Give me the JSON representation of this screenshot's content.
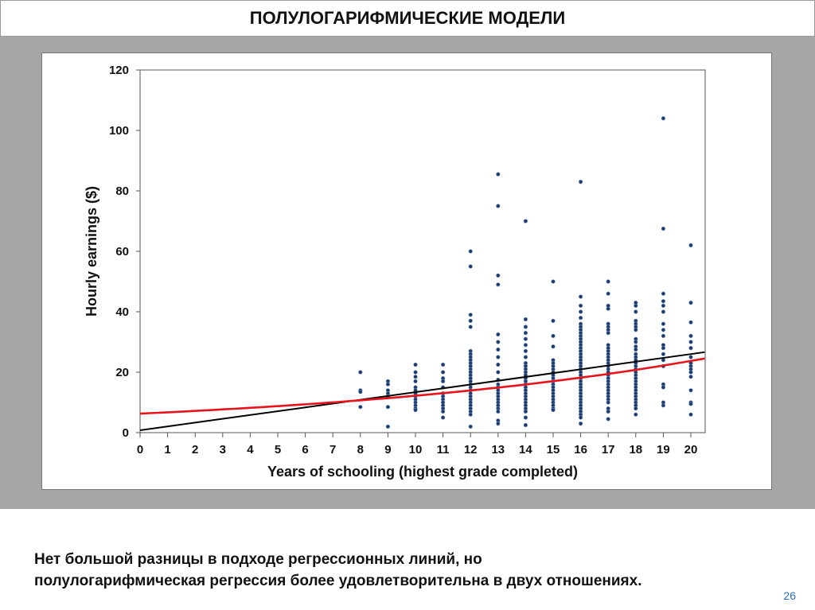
{
  "slide": {
    "title": "ПОЛУЛОГАРИФМИЧЕСКИЕ МОДЕЛИ",
    "note_line1": "Нет большой разницы в подходе регрессионных линий, но",
    "note_line2": "полулогарифмическая регрессия более удовлетворительна в двух отношениях.",
    "page_number": "26"
  },
  "chart_data": {
    "type": "scatter",
    "title": "",
    "xlabel": "Years of schooling (highest grade completed)",
    "ylabel": "Hourly earnings ($)",
    "xlim": [
      0,
      20.5
    ],
    "ylim": [
      0,
      120
    ],
    "xticks": [
      0,
      1,
      2,
      3,
      4,
      5,
      6,
      7,
      8,
      9,
      10,
      11,
      12,
      13,
      14,
      15,
      16,
      17,
      18,
      19,
      20
    ],
    "yticks": [
      0,
      20,
      40,
      60,
      80,
      100,
      120
    ],
    "grid": false,
    "point_color": "#1f3a68",
    "points_by_x": {
      "8": [
        20,
        14,
        13.5,
        8.5
      ],
      "9": [
        17,
        16,
        14,
        13,
        12,
        8.5,
        2
      ],
      "10": [
        22.5,
        20,
        18.5,
        17,
        15,
        14,
        13,
        12,
        11,
        10,
        9,
        8,
        7.5
      ],
      "11": [
        22.5,
        20,
        18,
        17,
        15,
        13,
        12,
        11,
        10,
        9,
        8,
        7,
        5
      ],
      "12": [
        60,
        55,
        39,
        37,
        35,
        27,
        26,
        25,
        24,
        23,
        22,
        21,
        20,
        19,
        18,
        17,
        16,
        15,
        14,
        13,
        12,
        11,
        10,
        9,
        8,
        7,
        6,
        2
      ],
      "13": [
        85.5,
        75,
        52,
        49,
        32.5,
        30,
        27.5,
        25,
        22.5,
        20,
        17.5,
        16,
        15,
        14,
        13,
        12,
        11,
        10,
        9,
        8,
        7,
        4,
        3
      ],
      "14": [
        70,
        37.5,
        35,
        33,
        31,
        29,
        27,
        25,
        23,
        22,
        21,
        20,
        19,
        18,
        17,
        16,
        15,
        14,
        13,
        12,
        11,
        10,
        9,
        8,
        7,
        5,
        2.5
      ],
      "15": [
        50,
        37,
        32,
        28.5,
        24,
        23,
        22,
        21,
        20,
        19,
        18,
        17,
        16,
        15,
        14,
        13,
        12,
        11,
        10,
        9,
        8,
        7.5
      ],
      "16": [
        83,
        45,
        42,
        40,
        38,
        36,
        35,
        34,
        33,
        32,
        31,
        30,
        29,
        28,
        27,
        26,
        25,
        24,
        23,
        22,
        21,
        20,
        19,
        18,
        17,
        16,
        15,
        14,
        13,
        12,
        11,
        10,
        9,
        8,
        7,
        6,
        5,
        3
      ],
      "17": [
        50,
        46,
        42,
        41,
        36,
        35,
        34,
        33,
        29,
        28,
        27,
        26,
        25,
        24,
        23,
        22,
        21,
        20,
        19,
        18,
        17,
        16,
        15,
        14,
        13,
        12,
        11,
        10,
        8,
        7,
        4.5
      ],
      "18": [
        43,
        42,
        40,
        37,
        36,
        35,
        34,
        31,
        30,
        28.5,
        27.5,
        26,
        25,
        24,
        23,
        22,
        21,
        20,
        19,
        18,
        17,
        16,
        15,
        14,
        13,
        12,
        11,
        10,
        9,
        8,
        6
      ],
      "19": [
        104,
        67.5,
        46,
        43.5,
        42,
        40,
        36,
        34,
        32,
        29,
        28,
        26,
        24,
        22,
        16,
        15,
        10,
        9
      ],
      "20": [
        62,
        43,
        36.5,
        32,
        30,
        28,
        25,
        23,
        22,
        21,
        20,
        18.5,
        14,
        10,
        9.5,
        6
      ]
    },
    "series": [
      {
        "name": "linear regression",
        "type": "line",
        "color": "#000000",
        "intercept": 0.8,
        "slope": 1.26,
        "x_range": [
          0,
          20.5
        ]
      },
      {
        "name": "semilogarithmic regression",
        "type": "curve",
        "color": "#e8141b",
        "a": 6.3,
        "b": 0.0663,
        "formula": "y=a*exp(b*x)",
        "x_range": [
          0,
          20.5
        ]
      }
    ]
  }
}
